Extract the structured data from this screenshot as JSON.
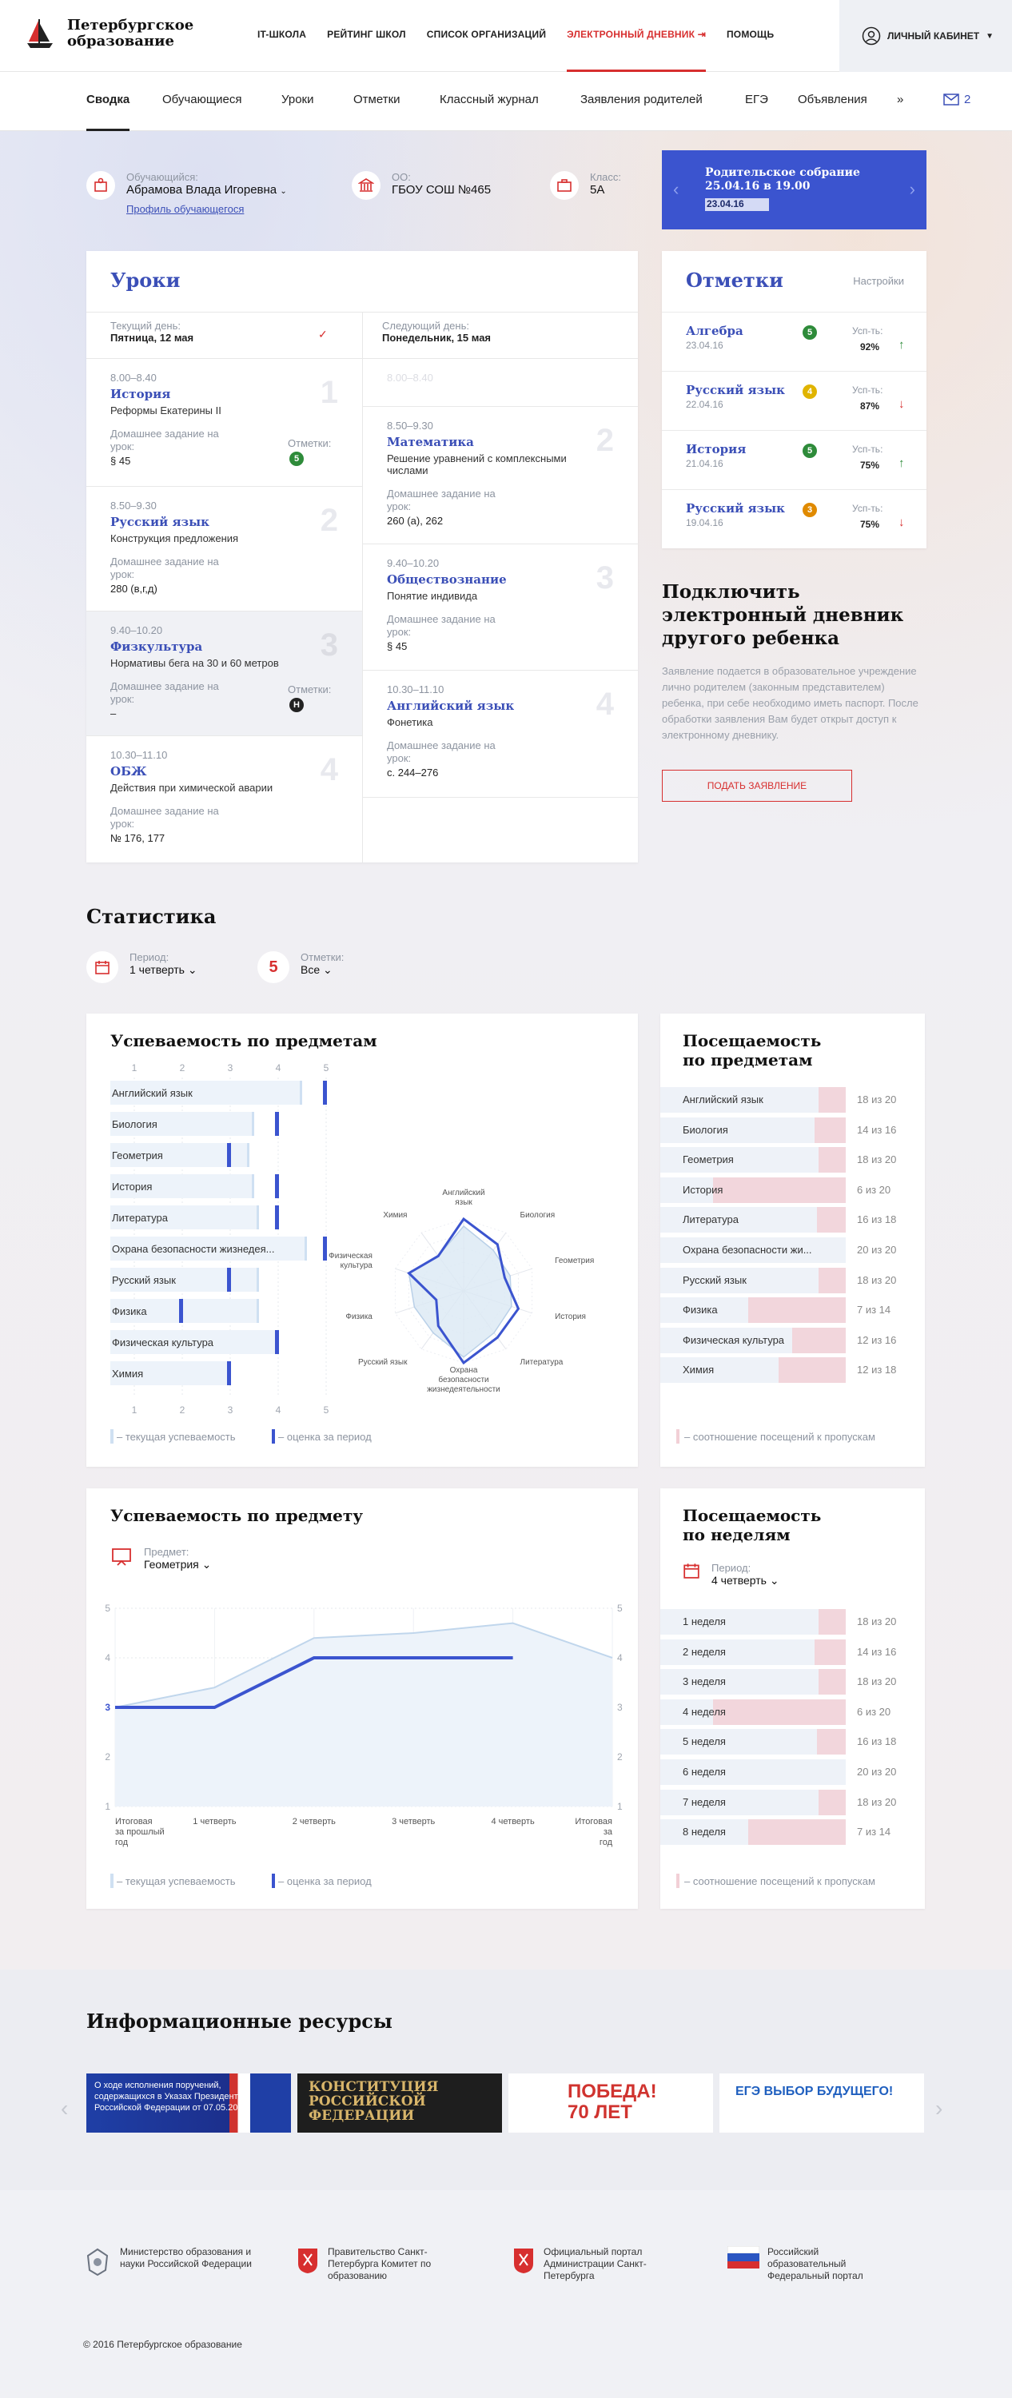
{
  "header": {
    "logo_text": "Петербургское образование",
    "nav": [
      "IT-школа",
      "Рейтинг школ",
      "Список организаций",
      "Электронный дневник",
      "Помощь"
    ],
    "cabinet": "Личный кабинет"
  },
  "subnav": {
    "items": [
      "Сводка",
      "Обучающиеся",
      "Уроки",
      "Отметки",
      "Классный журнал",
      "Заявления родителей",
      "ЕГЭ",
      "Объявления"
    ],
    "mail_count": "2"
  },
  "info": {
    "student_label": "Обучающийся:",
    "student_name": "Абрамова Влада Игоревна",
    "profile_link": "Профиль обучающегося",
    "oo_label": "ОО:",
    "oo_value": "ГБОУ СОШ №465",
    "class_label": "Класс:",
    "class_value": "5А",
    "banner_title": "Родительское собрание 25.04.16 в 19.00",
    "banner_date": "23.04.16"
  },
  "lessons": {
    "title": "Уроки",
    "cur_label": "Текущий день:",
    "cur_day": "Пятница, 12 мая",
    "next_label": "Следующий день:",
    "next_day": "Понедельник, 15 мая",
    "hw_label": "Домашнее задание на урок:",
    "marks_label": "Отметки:",
    "left": [
      {
        "time": "8.00–8.40",
        "name": "История",
        "desc": "Реформы Екатерины II",
        "hw": "§ 45",
        "mark": "5",
        "num": "1"
      },
      {
        "time": "8.50–9.30",
        "name": "Русский язык",
        "desc": "Конструкция предложения",
        "hw": "280 (в,г,д)",
        "mark": "",
        "num": "2"
      },
      {
        "time": "9.40–10.20",
        "name": "Физкультура",
        "desc": "Нормативы бега на 30 и 60 метров",
        "hw": "–",
        "mark": "Н",
        "num": "3"
      },
      {
        "time": "10.30–11.10",
        "name": "ОБЖ",
        "desc": "Действия при химической аварии",
        "hw": "№ 176, 177",
        "mark": "",
        "num": "4"
      }
    ],
    "right": [
      {
        "time": "8.00–8.40",
        "name": "",
        "desc": "",
        "hw": "",
        "num": ""
      },
      {
        "time": "8.50–9.30",
        "name": "Математика",
        "desc": "Решение уравнений с комплексными числами",
        "hw": "260 (а), 262",
        "num": "2"
      },
      {
        "time": "9.40–10.20",
        "name": "Обществознание",
        "desc": "Понятие индивида",
        "hw": "§ 45",
        "num": "3"
      },
      {
        "time": "10.30–11.10",
        "name": "Английский язык",
        "desc": "Фонетика",
        "hw": "с. 244–276",
        "num": "4"
      }
    ]
  },
  "marks": {
    "title": "Отметки",
    "settings": "Настройки",
    "perf_label": "Усп-ть:",
    "items": [
      {
        "subject": "Алгебра",
        "date": "23.04.16",
        "mark": "5",
        "color": "#2e8b3a",
        "pct": "92%",
        "trend": "↑",
        "tcolor": "#2e8b3a"
      },
      {
        "subject": "Русский язык",
        "date": "22.04.16",
        "mark": "4",
        "color": "#e0b400",
        "pct": "87%",
        "trend": "↓",
        "tcolor": "#d72f2f"
      },
      {
        "subject": "История",
        "date": "21.04.16",
        "mark": "5",
        "color": "#2e8b3a",
        "pct": "75%",
        "trend": "↑",
        "tcolor": "#2e8b3a"
      },
      {
        "subject": "Русский язык",
        "date": "19.04.16",
        "mark": "3",
        "color": "#e08a00",
        "pct": "75%",
        "trend": "↓",
        "tcolor": "#d72f2f"
      }
    ]
  },
  "connect": {
    "title": "Подключить электронный дневник другого ребенка",
    "text": "Заявление подается в образовательное учреждение лично родителем (законным представителем) ребенка, при себе необходимо иметь паспорт. После обработки заявления Вам будет открыт доступ к электронному дневнику.",
    "button": "Подать заявление"
  },
  "stats": {
    "title": "Статистика",
    "period_label": "Период:",
    "period_value": "1 четверть",
    "marks_label": "Отметки:",
    "marks_value": "Все"
  },
  "perf": {
    "title": "Успеваемость по предметам",
    "legend_current": "– текущая успеваемость",
    "legend_period": "– оценка за период",
    "ticks": [
      "1",
      "2",
      "3",
      "4",
      "5"
    ],
    "rows": [
      {
        "subject": "Английский язык",
        "current": 4.5,
        "period": 5
      },
      {
        "subject": "Биология",
        "current": 3.5,
        "period": 4
      },
      {
        "subject": "Геометрия",
        "current": 3.4,
        "period": 3
      },
      {
        "subject": "История",
        "current": 3.5,
        "period": 4
      },
      {
        "subject": "Литература",
        "current": 3.6,
        "period": 4
      },
      {
        "subject": "Охрана безопасности жизнедея...",
        "current": 4.6,
        "period": 5
      },
      {
        "subject": "Русский язык",
        "current": 3.6,
        "period": 3
      },
      {
        "subject": "Физика",
        "current": 3.6,
        "period": 2
      },
      {
        "subject": "Физическая культура",
        "current": 4.0,
        "period": 4
      },
      {
        "subject": "Химия",
        "current": 3.0,
        "period": 3
      }
    ],
    "radar": [
      {
        "label": "Английский язык",
        "current": 4.5,
        "period": 5
      },
      {
        "label": "Биология",
        "current": 3.5,
        "period": 4
      },
      {
        "label": "Геометрия",
        "current": 3.4,
        "period": 3
      },
      {
        "label": "История",
        "current": 3.5,
        "period": 4
      },
      {
        "label": "Литература",
        "current": 3.6,
        "period": 4
      },
      {
        "label": "Охрана безопасности жизнедеятельности",
        "current": 4.6,
        "period": 5
      },
      {
        "label": "Русский язык",
        "current": 3.6,
        "period": 3
      },
      {
        "label": "Физика",
        "current": 3.6,
        "period": 2
      },
      {
        "label": "Физическая культура",
        "current": 4.0,
        "period": 4
      },
      {
        "label": "Химия",
        "current": 3.0,
        "period": 3
      }
    ]
  },
  "attend": {
    "title": "Посещаемость по предметам",
    "legend": "– соотношение посещений к пропускам",
    "rows": [
      {
        "subject": "Английский язык",
        "value": "18 из 20",
        "ratio": 0.9
      },
      {
        "subject": "Биология",
        "value": "14 из 16",
        "ratio": 0.875
      },
      {
        "subject": "Геометрия",
        "value": "18 из 20",
        "ratio": 0.9
      },
      {
        "subject": "История",
        "value": "6 из 20",
        "ratio": 0.3
      },
      {
        "subject": "Литература",
        "value": "16 из 18",
        "ratio": 0.89
      },
      {
        "subject": "Охрана безопасности жи...",
        "value": "20 из 20",
        "ratio": 1.0
      },
      {
        "subject": "Русский язык",
        "value": "18 из 20",
        "ratio": 0.9
      },
      {
        "subject": "Физика",
        "value": "7 из 14",
        "ratio": 0.5
      },
      {
        "subject": "Физическая культура",
        "value": "12 из 16",
        "ratio": 0.75
      },
      {
        "subject": "Химия",
        "value": "12 из 18",
        "ratio": 0.67
      }
    ]
  },
  "subject_perf": {
    "title": "Успеваемость по предмету",
    "subject_label": "Предмет:",
    "subject_value": "Геометрия",
    "legend_current": "– текущая успеваемость",
    "legend_period": "– оценка за период"
  },
  "chart_data": {
    "type": "line",
    "x": [
      "Итоговая за прошлый год",
      "1 четверть",
      "2 четверть",
      "3 четверть",
      "4 четверть",
      "Итоговая за год"
    ],
    "series": [
      {
        "name": "текущая успеваемость",
        "values": [
          3,
          3.4,
          4.4,
          4.5,
          4.7,
          4
        ]
      },
      {
        "name": "оценка за период",
        "values": [
          3,
          3,
          4,
          4,
          4,
          null
        ]
      }
    ],
    "ylim": [
      1,
      5
    ],
    "yticks": [
      "1",
      "2",
      "3",
      "4",
      "5"
    ],
    "highlight": "3"
  },
  "weeks": {
    "title": "Посещаемость по неделям",
    "period_label": "Период:",
    "period_value": "4 четверть",
    "legend": "– соотношение посещений к пропускам",
    "rows": [
      {
        "week": "1 неделя",
        "value": "18 из 20",
        "ratio": 0.9
      },
      {
        "week": "2 неделя",
        "value": "14 из 16",
        "ratio": 0.875
      },
      {
        "week": "3 неделя",
        "value": "18 из 20",
        "ratio": 0.9
      },
      {
        "week": "4 неделя",
        "value": "6 из 20",
        "ratio": 0.3
      },
      {
        "week": "5 неделя",
        "value": "16 из 18",
        "ratio": 0.89
      },
      {
        "week": "6 неделя",
        "value": "20 из 20",
        "ratio": 1.0
      },
      {
        "week": "7 неделя",
        "value": "18 из 20",
        "ratio": 0.9
      },
      {
        "week": "8 неделя",
        "value": "7 из 14",
        "ratio": 0.5
      }
    ]
  },
  "resources": {
    "title": "Информационные ресурсы",
    "banners": [
      {
        "text": "О ходе исполнения поручений, содержащихся в Указах Президента Российской Федерации от 07.05.2012"
      },
      {
        "text": "КОНСТИТУЦИЯ РОССИЙСКОЙ ФЕДЕРАЦИИ"
      },
      {
        "text": "ПОБЕДА! 70 ЛЕТ"
      },
      {
        "text": "ЕГЭ ВЫБОР БУДУЩЕГО!"
      }
    ]
  },
  "footer": {
    "links": [
      "Министерство образования и науки Российской Федерации",
      "Правительство Санкт-Петербурга Комитет по образованию",
      "Официальный портал Администрации Санкт-Петербурга",
      "Российский образовательный Федеральный портал"
    ],
    "copyright": "© 2016 Петербургское образование"
  }
}
